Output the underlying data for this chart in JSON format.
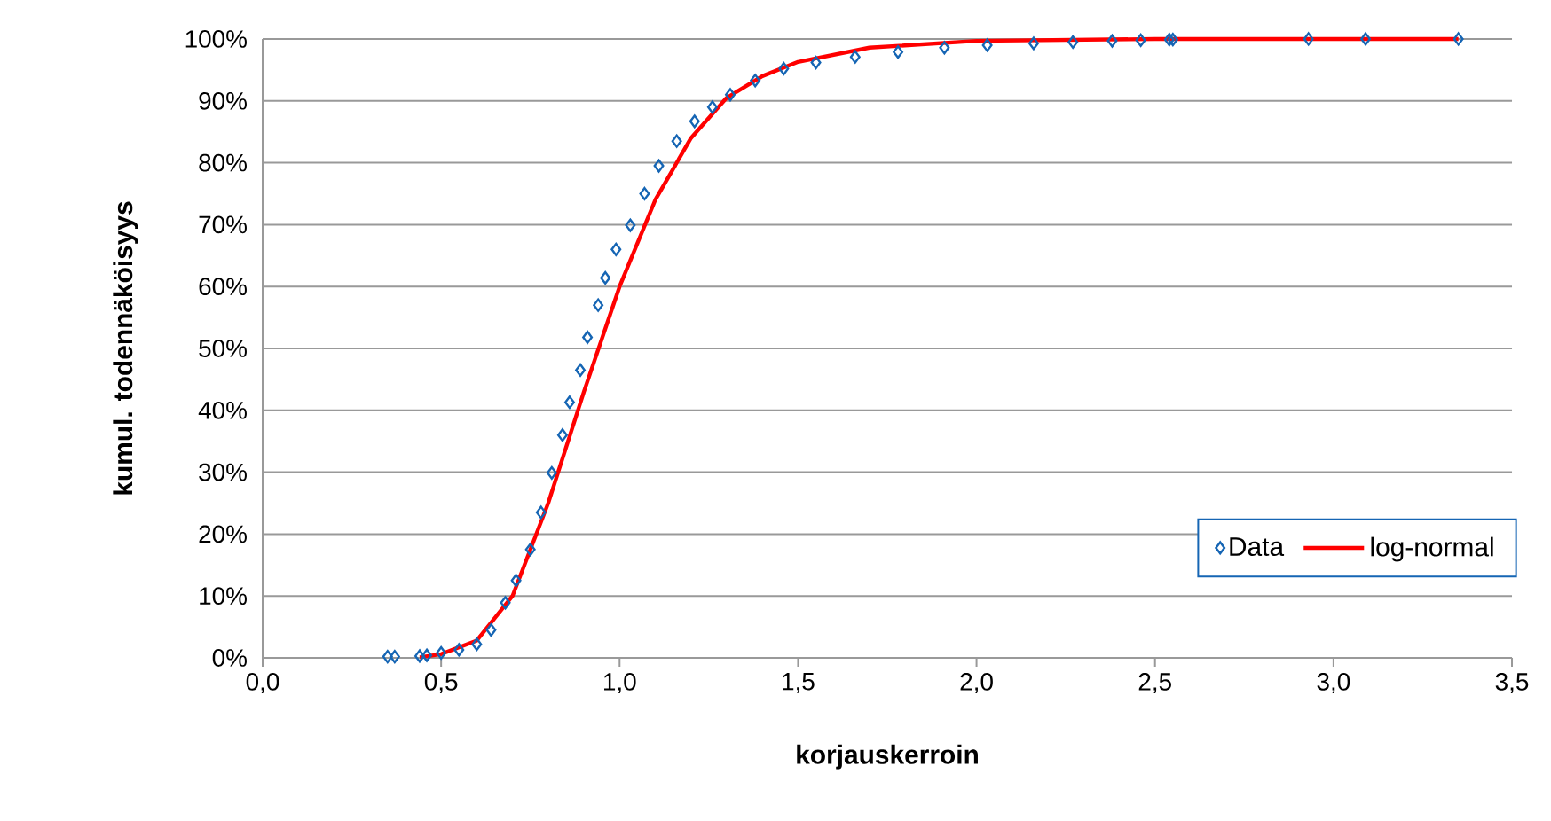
{
  "chart_data": {
    "type": "scatter",
    "xlabel": "korjauskerroin",
    "ylabel": "kumul. todennäköisyys",
    "xlim": [
      0,
      3.5
    ],
    "ylim": [
      0,
      100
    ],
    "xticks": [
      {
        "value": 0,
        "label": "0,0"
      },
      {
        "value": 0.5,
        "label": "0,5"
      },
      {
        "value": 1,
        "label": "1,0"
      },
      {
        "value": 1.5,
        "label": "1,5"
      },
      {
        "value": 2,
        "label": "2,0"
      },
      {
        "value": 2.5,
        "label": "2,5"
      },
      {
        "value": 3,
        "label": "3,0"
      },
      {
        "value": 3.5,
        "label": "3,5"
      }
    ],
    "yticks": [
      {
        "value": 0,
        "label": "0%"
      },
      {
        "value": 10,
        "label": "10%"
      },
      {
        "value": 20,
        "label": "20%"
      },
      {
        "value": 30,
        "label": "30%"
      },
      {
        "value": 40,
        "label": "40%"
      },
      {
        "value": 50,
        "label": "50%"
      },
      {
        "value": 60,
        "label": "60%"
      },
      {
        "value": 70,
        "label": "70%"
      },
      {
        "value": 80,
        "label": "80%"
      },
      {
        "value": 90,
        "label": "90%"
      },
      {
        "value": 100,
        "label": "100%"
      }
    ],
    "grid": "y",
    "legend": "bottom right",
    "series": [
      {
        "name": "Data",
        "marker": "diamond",
        "color": "#1565b4",
        "x": [
          0.35,
          0.37,
          0.44,
          0.46,
          0.5,
          0.55,
          0.6,
          0.64,
          0.68,
          0.71,
          0.75,
          0.78,
          0.81,
          0.84,
          0.86,
          0.89,
          0.91,
          0.94,
          0.96,
          0.99,
          1.03,
          1.07,
          1.11,
          1.16,
          1.21,
          1.26,
          1.31,
          1.38,
          1.46,
          1.55,
          1.66,
          1.78,
          1.91,
          2.03,
          2.16,
          2.27,
          2.38,
          2.46,
          2.54,
          2.55,
          2.93,
          3.09,
          3.35
        ],
        "values": [
          0.2,
          0.2,
          0.3,
          0.4,
          0.8,
          1.3,
          2.2,
          4.5,
          8.9,
          12.5,
          17.5,
          23.5,
          29.9,
          36,
          41.3,
          46.5,
          51.8,
          57,
          61.4,
          66,
          69.9,
          75,
          79.5,
          83.5,
          86.7,
          89,
          91,
          93.3,
          95.2,
          96.2,
          97.1,
          97.9,
          98.6,
          99,
          99.3,
          99.5,
          99.7,
          99.8,
          99.9,
          99.9,
          100,
          100,
          100
        ]
      },
      {
        "name": "log-normal",
        "type": "line",
        "marker": "none",
        "color": "#ff0000",
        "x": [
          0.44,
          0.5,
          0.6,
          0.7,
          0.8,
          0.9,
          1.0,
          1.1,
          1.2,
          1.3,
          1.4,
          1.5,
          1.7,
          2.0,
          2.5,
          3.35
        ],
        "values": [
          0.1,
          0.6,
          2.8,
          10,
          25,
          43,
          60,
          74,
          84,
          90.5,
          94,
          96.3,
          98.6,
          99.7,
          100,
          100
        ]
      }
    ]
  }
}
